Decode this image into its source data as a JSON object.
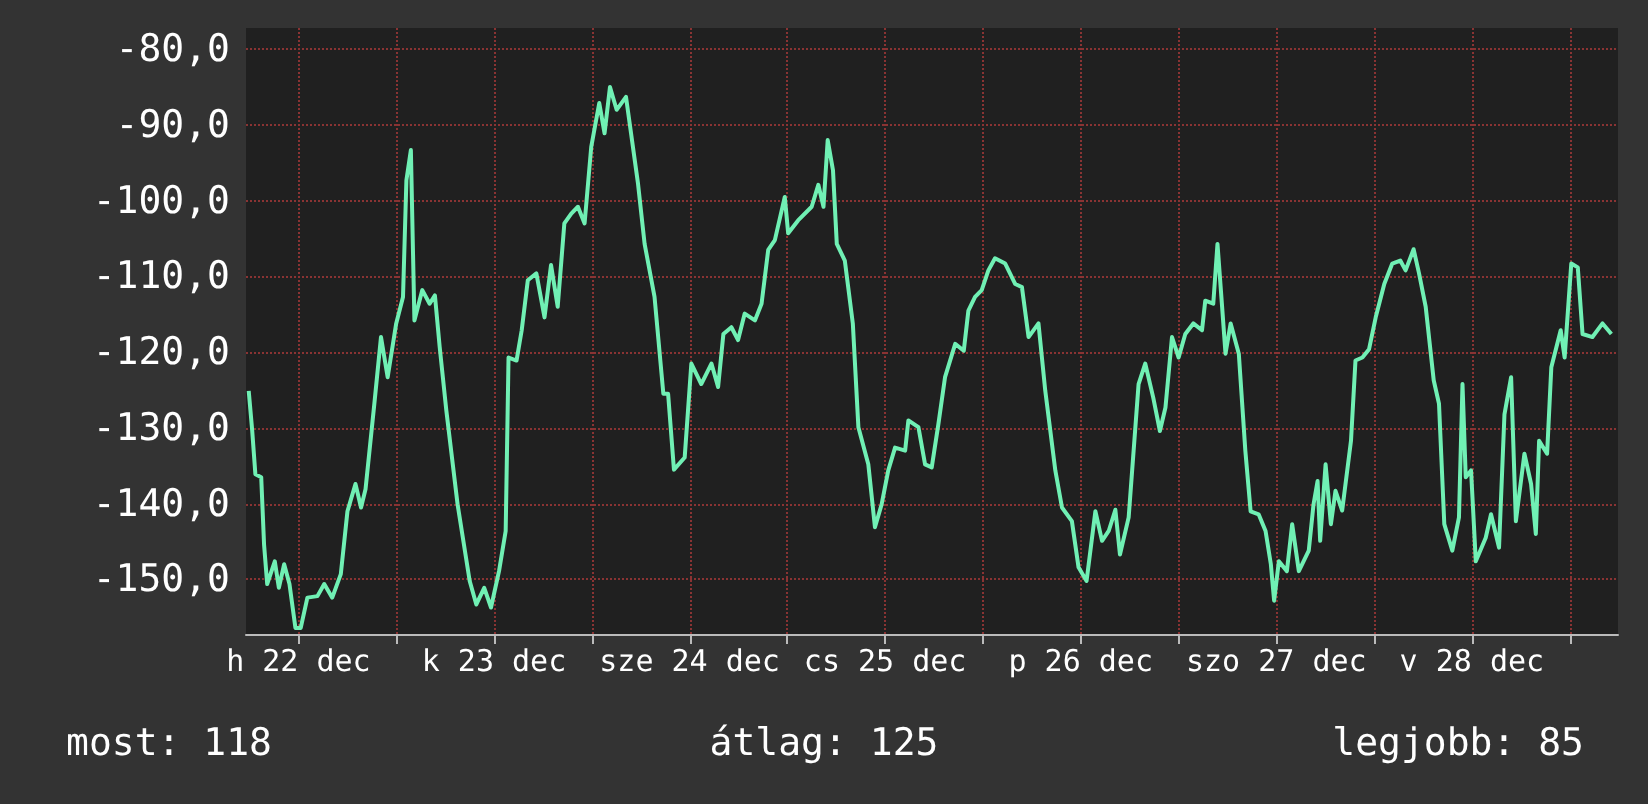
{
  "chart_data": {
    "type": "line",
    "x": [
      "--12-22T05:54",
      "--12-22T06:19",
      "--12-22T06:43",
      "--12-22T07:26",
      "--12-22T07:47",
      "--12-22T08:10",
      "--12-22T09:06",
      "--12-22T09:36",
      "--12-22T10:15",
      "--12-22T10:54",
      "--12-22T11:38",
      "--12-22T12:17",
      "--12-22T13:06",
      "--12-22T14:20",
      "--12-22T15:10",
      "--12-22T16:09",
      "--12-22T17:12",
      "--12-22T18:01",
      "--12-22T19:00",
      "--12-22T19:41",
      "--12-22T20:14",
      "--12-22T21:19",
      "--12-22T22:08",
      "--12-22T22:57",
      "--12-23T00:00",
      "--12-23T00:50",
      "--12-23T01:15",
      "--12-23T01:48",
      "--12-23T02:14",
      "--12-23T03:12",
      "--12-23T04:06",
      "--12-23T04:45",
      "--12-23T05:20",
      "--12-23T06:09",
      "--12-23T07:32",
      "--12-23T09:01",
      "--12-23T09:50",
      "--12-23T10:48",
      "--12-23T11:38",
      "--12-23T12:37",
      "--12-23T13:26",
      "--12-23T13:47",
      "--12-23T14:46",
      "--12-23T15:24",
      "--12-23T16:09",
      "--12-23T17:12",
      "--12-23T18:12",
      "--12-23T19:00",
      "--12-23T19:49",
      "--12-23T20:38",
      "--12-23T21:29",
      "--12-23T22:18",
      "--12-23T23:07",
      "--12-23T23:56",
      "--12-24T00:55",
      "--12-24T01:34",
      "--12-24T02:14",
      "--12-24T03:03",
      "--12-24T04:12",
      "--12-24T05:40",
      "--12-24T06:29",
      "--12-24T07:42",
      "--12-24T08:47",
      "--12-24T09:22",
      "--12-24T10:05",
      "--12-24T11:24",
      "--12-24T12:13",
      "--12-24T13:26",
      "--12-24T14:41",
      "--12-24T15:30",
      "--12-24T16:09",
      "--12-24T17:08",
      "--12-24T17:57",
      "--12-24T18:46",
      "--12-24T20:01",
      "--12-24T20:50",
      "--12-24T21:39",
      "--12-24T22:28",
      "--12-24T23:41",
      "--12-25T00:06",
      "--12-25T01:19",
      "--12-25T02:59",
      "--12-25T03:48",
      "--12-25T04:26",
      "--12-25T04:57",
      "--12-25T05:36",
      "--12-25T06:04",
      "--12-25T07:03",
      "--12-25T08:02",
      "--12-25T08:43",
      "--12-25T09:56",
      "--12-25T10:45",
      "--12-25T11:34",
      "--12-25T12:23",
      "--12-25T13:13",
      "--12-25T14:27",
      "--12-25T14:51",
      "--12-25T16:05",
      "--12-25T16:54",
      "--12-25T17:43",
      "--12-25T18:32",
      "--12-25T19:21",
      "--12-25T20:36",
      "--12-25T21:39",
      "--12-25T22:13",
      "--12-25T23:02",
      "--12-25T23:51",
      "--12-26T00:40",
      "--12-26T01:29",
      "--12-26T02:44",
      "--12-26T03:58",
      "--12-26T04:47",
      "--12-26T05:36",
      "--12-26T06:49",
      "--12-26T07:39",
      "--12-26T08:53",
      "--12-26T09:42",
      "--12-26T10:55",
      "--12-26T11:44",
      "--12-26T12:43",
      "--12-26T13:48",
      "--12-26T14:37",
      "--12-26T15:26",
      "--12-26T16:15",
      "--12-26T16:49",
      "--12-26T17:53",
      "--12-26T19:06",
      "--12-26T19:55",
      "--12-26T20:54",
      "--12-26T21:43",
      "--12-26T22:24",
      "--12-26T23:12",
      "--12-27T00:01",
      "--12-27T00:50",
      "--12-27T01:49",
      "--12-27T02:53",
      "--12-27T03:17",
      "--12-27T04:16",
      "--12-27T04:47",
      "--12-27T05:21",
      "--12-27T05:46",
      "--12-27T06:24",
      "--12-27T07:24",
      "--12-27T08:12",
      "--12-27T08:51",
      "--12-27T09:50",
      "--12-27T10:41",
      "--12-27T11:20",
      "--12-27T11:44",
      "--12-27T12:19",
      "--12-27T13:18",
      "--12-27T13:57",
      "--12-27T14:46",
      "--12-27T15:59",
      "--12-27T16:34",
      "--12-27T17:04",
      "--12-27T17:23",
      "--12-27T18:03",
      "--12-27T18:42",
      "--12-27T19:16",
      "--12-27T20:05",
      "--12-27T21:10",
      "--12-27T21:43",
      "--12-27T22:34",
      "--12-27T23:23",
      "--12-28T00:12",
      "--12-28T01:15",
      "--12-28T02:14",
      "--12-28T03:13",
      "--12-28T03:52",
      "--12-28T04:51",
      "--12-28T05:31",
      "--12-28T06:20",
      "--12-28T07:19",
      "--12-28T07:58",
      "--12-28T08:37",
      "--12-28T09:36",
      "--12-28T10:25",
      "--12-28T10:51",
      "--12-28T11:15",
      "--12-28T11:54",
      "--12-28T12:29",
      "--12-28T13:42",
      "--12-28T14:21",
      "--12-28T15:20",
      "--12-28T16:00",
      "--12-28T16:49",
      "--12-28T17:24",
      "--12-28T18:27",
      "--12-28T19:16",
      "--12-28T19:51",
      "--12-28T20:15",
      "--12-28T21:14",
      "--12-28T21:45",
      "--12-28T22:54",
      "--12-28T23:23",
      "--12-29T00:12",
      "--12-29T01:00",
      "--12-29T01:35",
      "--12-29T02:48",
      "--12-29T04:02",
      "--12-29T05:07"
    ],
    "series": [
      {
        "color": "#70f0b4",
        "values": [
          -125.1,
          -130.2,
          -136.1,
          -136.5,
          -145.4,
          -150.6,
          -147.6,
          -151.1,
          -148.0,
          -150.6,
          -156.4,
          -156.4,
          -152.4,
          -152.2,
          -150.6,
          -152.4,
          -149.3,
          -141.0,
          -137.4,
          -140.5,
          -138.1,
          -126.8,
          -118.0,
          -123.3,
          -116.2,
          -112.7,
          -97.3,
          -93.3,
          -115.8,
          -111.8,
          -113.6,
          -112.5,
          -119.3,
          -127.7,
          -140.1,
          -150.2,
          -153.3,
          -151.1,
          -153.7,
          -148.9,
          -143.6,
          -120.7,
          -121.1,
          -117.1,
          -110.5,
          -109.6,
          -115.4,
          -108.5,
          -114.0,
          -103.0,
          -101.7,
          -100.8,
          -103.0,
          -92.9,
          -87.1,
          -91.1,
          -85.0,
          -88.0,
          -86.3,
          -97.7,
          -105.7,
          -112.7,
          -125.5,
          -125.5,
          -135.5,
          -133.9,
          -121.5,
          -124.2,
          -121.5,
          -124.6,
          -117.6,
          -116.7,
          -118.4,
          -114.9,
          -115.8,
          -113.6,
          -106.5,
          -105.2,
          -99.5,
          -104.3,
          -102.6,
          -100.8,
          -97.9,
          -100.8,
          -92.0,
          -96.0,
          -105.7,
          -107.9,
          -116.2,
          -129.9,
          -134.8,
          -143.1,
          -140.1,
          -135.6,
          -132.6,
          -133.0,
          -129.0,
          -129.9,
          -134.8,
          -135.2,
          -129.5,
          -123.3,
          -118.9,
          -119.8,
          -114.5,
          -112.7,
          -111.8,
          -109.2,
          -107.6,
          -108.3,
          -111.0,
          -111.4,
          -118.0,
          -116.2,
          -125.1,
          -135.6,
          -140.5,
          -142.3,
          -148.4,
          -150.2,
          -141.0,
          -144.9,
          -143.6,
          -140.8,
          -146.7,
          -141.8,
          -124.2,
          -121.5,
          -126.0,
          -130.4,
          -127.3,
          -118.0,
          -120.7,
          -117.6,
          -116.2,
          -117.1,
          -113.2,
          -113.6,
          -105.7,
          -114.0,
          -120.2,
          -116.2,
          -120.2,
          -133.0,
          -141.0,
          -141.4,
          -143.6,
          -148.0,
          -152.8,
          -147.6,
          -148.9,
          -142.7,
          -148.9,
          -146.2,
          -140.1,
          -137.0,
          -144.9,
          -134.8,
          -142.7,
          -138.3,
          -140.9,
          -131.7,
          -121.1,
          -120.7,
          -119.6,
          -115.4,
          -111.0,
          -108.3,
          -107.9,
          -109.2,
          -106.4,
          -109.6,
          -114.0,
          -123.7,
          -126.8,
          -142.7,
          -146.2,
          -141.8,
          -124.2,
          -136.5,
          -135.6,
          -147.6,
          -144.5,
          -141.4,
          -145.8,
          -128.2,
          -123.3,
          -142.3,
          -133.4,
          -137.4,
          -144.0,
          -131.7,
          -133.4,
          -122.0,
          -117.1,
          -120.7,
          -108.3,
          -108.8,
          -117.6,
          -118.0,
          -116.2,
          -117.6
        ]
      }
    ],
    "xlim": [
      "--12-22T05:34",
      "--12-29T05:56"
    ],
    "xticks": [
      {
        "value": "--12-22T12:00",
        "label": "h 22 dec"
      },
      {
        "value": "--12-23T00:00",
        "label": null
      },
      {
        "value": "--12-23T12:00",
        "label": "k 23 dec"
      },
      {
        "value": "--12-24T00:00",
        "label": null
      },
      {
        "value": "--12-24T12:00",
        "label": "sze 24 dec"
      },
      {
        "value": "--12-25T00:00",
        "label": null
      },
      {
        "value": "--12-25T12:00",
        "label": "cs 25 dec"
      },
      {
        "value": "--12-26T00:00",
        "label": null
      },
      {
        "value": "--12-26T12:00",
        "label": "p 26 dec"
      },
      {
        "value": "--12-27T00:00",
        "label": null
      },
      {
        "value": "--12-27T12:00",
        "label": "szo 27 dec"
      },
      {
        "value": "--12-28T00:00",
        "label": null
      },
      {
        "value": "--12-28T12:00",
        "label": "v 28 dec"
      },
      {
        "value": "--12-29T00:00",
        "label": null
      }
    ],
    "ylim": [
      -157.2,
      -77.2
    ],
    "yticks": [
      {
        "value": -150,
        "label": "-150,0"
      },
      {
        "value": -140,
        "label": "-140,0"
      },
      {
        "value": -130,
        "label": "-130,0"
      },
      {
        "value": -120,
        "label": "-120,0"
      },
      {
        "value": -110,
        "label": "-110,0"
      },
      {
        "value": -100,
        "label": "-100,0"
      },
      {
        "value": -90,
        "label": "-90,0"
      },
      {
        "value": -80,
        "label": "-80,0"
      }
    ],
    "grid": true,
    "marker": "none",
    "line_style": "solid",
    "annotations": [
      "most: 118",
      "átlag: 125",
      "legjobb: 85"
    ]
  }
}
